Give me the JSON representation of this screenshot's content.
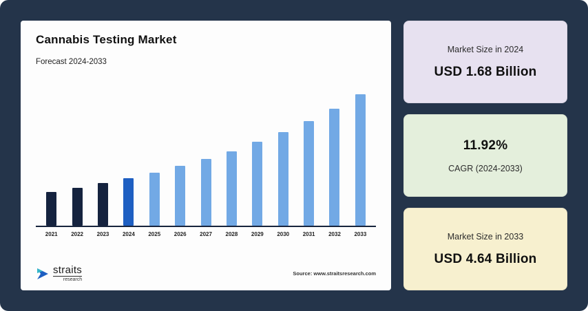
{
  "colors": {
    "background": "#24344a",
    "chart_card_bg": "#fdfdfd",
    "card_2024_bg": "#e7e1f0",
    "card_cagr_bg": "#e4efdc",
    "card_2033_bg": "#f7f0cf",
    "bar_dark": "#15233f",
    "bar_accent": "#1e5fc2",
    "bar_light": "#72a9e5"
  },
  "chart": {
    "title": "Cannabis Testing Market",
    "subtitle": "Forecast 2024-2033"
  },
  "chart_data": {
    "type": "bar",
    "title": "Cannabis Testing Market",
    "subtitle": "Forecast 2024-2033",
    "categories": [
      "2021",
      "2022",
      "2023",
      "2024",
      "2025",
      "2026",
      "2027",
      "2028",
      "2029",
      "2030",
      "2031",
      "2032",
      "2033"
    ],
    "values": [
      1.2,
      1.34,
      1.5,
      1.68,
      1.88,
      2.1,
      2.35,
      2.63,
      2.95,
      3.3,
      3.69,
      4.13,
      4.64
    ],
    "unit": "USD Billion",
    "xlabel": "",
    "ylabel": "",
    "ylim": [
      0,
      5
    ],
    "grid": false,
    "legend": false,
    "colors": [
      "#15233f",
      "#15233f",
      "#15233f",
      "#1e5fc2",
      "#72a9e5",
      "#72a9e5",
      "#72a9e5",
      "#72a9e5",
      "#72a9e5",
      "#72a9e5",
      "#72a9e5",
      "#72a9e5",
      "#72a9e5"
    ]
  },
  "footer": {
    "logo_name": "straits",
    "logo_sub": "research",
    "source": "Source: www.straitsresearch.com"
  },
  "stats": [
    {
      "label": "Market Size in 2024",
      "value": "USD 1.68 Billion"
    },
    {
      "value": "11.92%",
      "label": "CAGR (2024-2033)"
    },
    {
      "label": "Market Size in 2033",
      "value": "USD 4.64 Billion"
    }
  ]
}
